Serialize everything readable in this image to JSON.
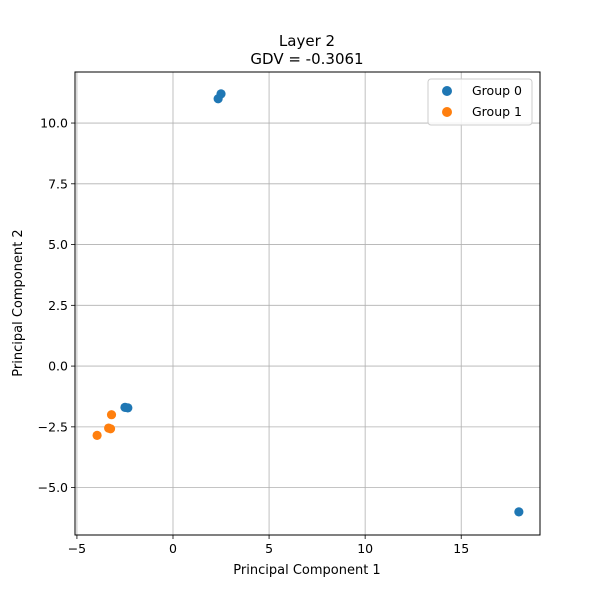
{
  "chart_data": {
    "type": "scatter",
    "title_line1": "Layer 2",
    "title_line2": "GDV = -0.3061",
    "xlabel": "Principal Component 1",
    "ylabel": "Principal Component 2",
    "xlim": [
      -5.1,
      19.1
    ],
    "ylim": [
      -6.95,
      12.1
    ],
    "xticks": [
      -5,
      0,
      5,
      10,
      15
    ],
    "yticks": [
      -5.0,
      -2.5,
      0.0,
      2.5,
      5.0,
      7.5,
      10.0
    ],
    "xtick_labels": [
      "−5",
      "0",
      "5",
      "10",
      "15"
    ],
    "ytick_labels": [
      "−5.0",
      "−2.5",
      "0.0",
      "2.5",
      "5.0",
      "7.5",
      "10.0"
    ],
    "grid": true,
    "legend_position": "top-right",
    "series": [
      {
        "name": "Group 0",
        "color": "#1f77b4",
        "points": [
          {
            "x": 2.5,
            "y": 11.2
          },
          {
            "x": 2.35,
            "y": 11.0
          },
          {
            "x": -2.5,
            "y": -1.7
          },
          {
            "x": -2.35,
            "y": -1.72
          },
          {
            "x": 18.0,
            "y": -6.0
          }
        ]
      },
      {
        "name": "Group 1",
        "color": "#ff7f0e",
        "points": [
          {
            "x": -3.2,
            "y": -2.0
          },
          {
            "x": -3.35,
            "y": -2.55
          },
          {
            "x": -3.25,
            "y": -2.58
          },
          {
            "x": -3.95,
            "y": -2.85
          }
        ]
      }
    ]
  }
}
